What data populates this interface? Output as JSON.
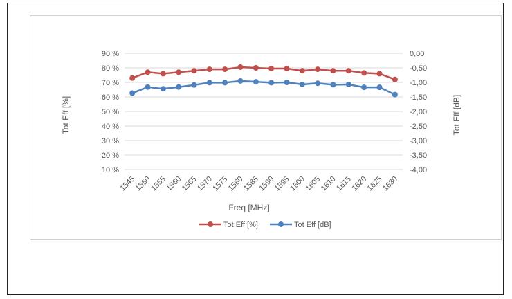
{
  "chart_data": {
    "type": "line",
    "title": "",
    "xlabel": "Freq [MHz]",
    "ylabel_left": "Tot Eff [%]",
    "ylabel_right": "Tot Eff [dB]",
    "categories": [
      "1545",
      "1550",
      "1555",
      "1560",
      "1565",
      "1570",
      "1575",
      "1580",
      "1585",
      "1590",
      "1595",
      "1600",
      "1605",
      "1610",
      "1615",
      "1620",
      "1625",
      "1630"
    ],
    "y_left_ticks": [
      "10 %",
      "20 %",
      "30 %",
      "40 %",
      "50 %",
      "60 %",
      "70 %",
      "80 %",
      "90 %"
    ],
    "y_right_ticks": [
      "0,00",
      "-0,50",
      "-1,00",
      "-1,50",
      "-2,00",
      "-2,50",
      "-3,00",
      "-3,50",
      "-4,00"
    ],
    "ylim_left": [
      10,
      90
    ],
    "ylim_right": [
      -4.0,
      0.0
    ],
    "grid": true,
    "legend_position": "bottom",
    "series": [
      {
        "name": "Tot Eff [%]",
        "axis": "left",
        "color": "#c0504d",
        "values": [
          73,
          77,
          76,
          77,
          78,
          79,
          79,
          80.5,
          80,
          79.5,
          79.5,
          78,
          79,
          78,
          78,
          76.5,
          76,
          72
        ]
      },
      {
        "name": "Tot Eff [dB]",
        "axis": "right",
        "color": "#4f81bd",
        "values": [
          -1.37,
          -1.16,
          -1.22,
          -1.16,
          -1.09,
          -1.01,
          -1.01,
          -0.95,
          -0.98,
          -1.01,
          -1.0,
          -1.07,
          -1.03,
          -1.08,
          -1.07,
          -1.17,
          -1.17,
          -1.42
        ]
      }
    ]
  }
}
